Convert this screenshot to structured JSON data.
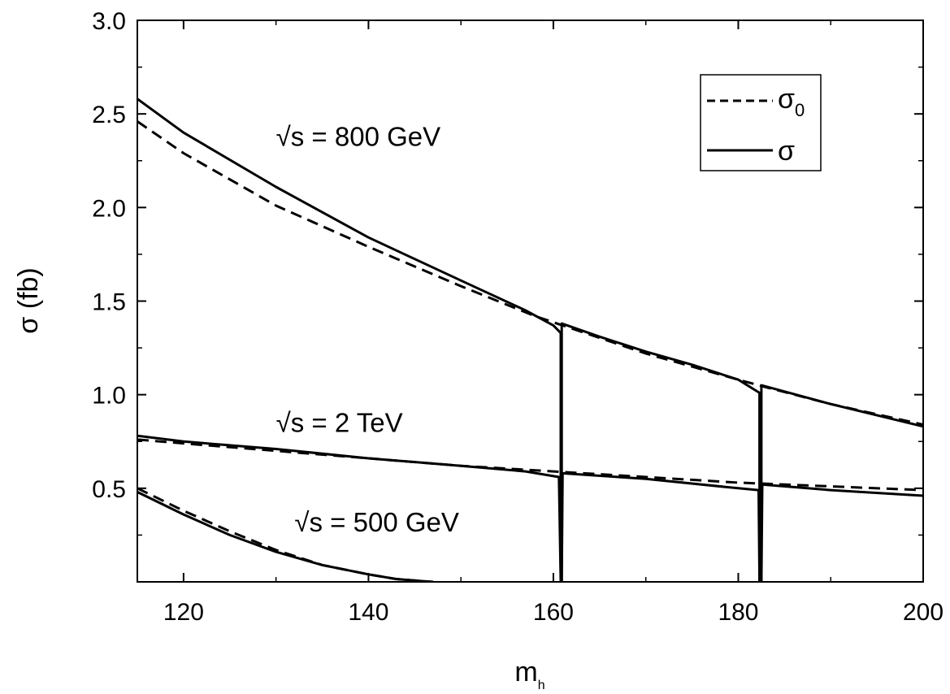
{
  "chart_data": {
    "type": "line",
    "title": "",
    "xlabel": "m",
    "xlabel_sub": "h",
    "ylabel": "σ (fb)",
    "xlim": [
      115,
      200
    ],
    "ylim": [
      0,
      3.0
    ],
    "xticks": [
      "120",
      "140",
      "160",
      "180",
      "200"
    ],
    "xtick_values": [
      120,
      140,
      160,
      180,
      200
    ],
    "yticks": [
      "0.5",
      "1.0",
      "1.5",
      "2.0",
      "2.5",
      "3.0"
    ],
    "ytick_values": [
      0.5,
      1.0,
      1.5,
      2.0,
      2.5,
      3.0
    ],
    "legend": {
      "placement": "top-right",
      "entries": [
        {
          "label": "σ",
          "sub": "0",
          "style": "dashed"
        },
        {
          "label": "σ",
          "sub": "",
          "style": "solid"
        }
      ]
    },
    "annotations": [
      {
        "text": "√s = 800 GeV",
        "x": 130,
        "y": 2.33
      },
      {
        "text": "√s = 2 TeV",
        "x": 130,
        "y": 0.8
      },
      {
        "text": "√s = 500 GeV",
        "x": 132,
        "y": 0.27
      }
    ],
    "series": [
      {
        "group": "800 GeV",
        "style": "dashed",
        "points": [
          [
            115,
            2.46
          ],
          [
            120,
            2.29
          ],
          [
            130,
            2.01
          ],
          [
            140,
            1.79
          ],
          [
            150,
            1.58
          ],
          [
            158,
            1.42
          ],
          [
            161,
            1.37
          ],
          [
            170,
            1.22
          ],
          [
            180,
            1.08
          ],
          [
            183,
            1.04
          ],
          [
            190,
            0.95
          ],
          [
            200,
            0.84
          ]
        ]
      },
      {
        "group": "800 GeV",
        "style": "solid",
        "points": [
          [
            115,
            2.58
          ],
          [
            120,
            2.4
          ],
          [
            130,
            2.11
          ],
          [
            140,
            1.84
          ],
          [
            150,
            1.61
          ],
          [
            157,
            1.45
          ],
          [
            160,
            1.37
          ],
          [
            160.8,
            1.33
          ],
          [
            160.8,
            0.0
          ],
          [
            160.9,
            0.0
          ],
          [
            160.9,
            1.38
          ],
          [
            165,
            1.31
          ],
          [
            170,
            1.23
          ],
          [
            175,
            1.16
          ],
          [
            180,
            1.08
          ],
          [
            182.3,
            1.01
          ],
          [
            182.3,
            0.0
          ],
          [
            182.5,
            0.0
          ],
          [
            182.5,
            1.05
          ],
          [
            190,
            0.95
          ],
          [
            200,
            0.83
          ]
        ]
      },
      {
        "group": "2 TeV",
        "style": "dashed",
        "points": [
          [
            115,
            0.76
          ],
          [
            120,
            0.74
          ],
          [
            130,
            0.7
          ],
          [
            140,
            0.66
          ],
          [
            150,
            0.62
          ],
          [
            160,
            0.59
          ],
          [
            170,
            0.56
          ],
          [
            180,
            0.53
          ],
          [
            190,
            0.51
          ],
          [
            200,
            0.49
          ]
        ]
      },
      {
        "group": "2 TeV",
        "style": "solid",
        "points": [
          [
            115,
            0.78
          ],
          [
            120,
            0.75
          ],
          [
            130,
            0.71
          ],
          [
            140,
            0.66
          ],
          [
            150,
            0.62
          ],
          [
            157,
            0.59
          ],
          [
            160.6,
            0.56
          ],
          [
            160.8,
            0.0
          ],
          [
            160.9,
            0.0
          ],
          [
            161,
            0.58
          ],
          [
            170,
            0.55
          ],
          [
            180,
            0.5
          ],
          [
            182.2,
            0.49
          ],
          [
            182.3,
            0.0
          ],
          [
            182.5,
            0.0
          ],
          [
            182.6,
            0.52
          ],
          [
            190,
            0.49
          ],
          [
            200,
            0.46
          ]
        ]
      },
      {
        "group": "500 GeV",
        "style": "dashed",
        "points": [
          [
            115,
            0.5
          ],
          [
            120,
            0.38
          ],
          [
            125,
            0.27
          ],
          [
            130,
            0.17
          ],
          [
            135,
            0.09
          ],
          [
            140,
            0.04
          ],
          [
            143,
            0.015
          ],
          [
            146,
            0.003
          ],
          [
            147,
            0.0
          ]
        ]
      },
      {
        "group": "500 GeV",
        "style": "solid",
        "points": [
          [
            115,
            0.48
          ],
          [
            120,
            0.36
          ],
          [
            125,
            0.25
          ],
          [
            130,
            0.16
          ],
          [
            135,
            0.09
          ],
          [
            140,
            0.04
          ],
          [
            143,
            0.015
          ],
          [
            146,
            0.003
          ],
          [
            147,
            0.0
          ]
        ]
      }
    ]
  }
}
